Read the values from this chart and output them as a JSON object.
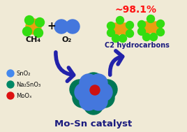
{
  "bg_color": "#f0ead6",
  "border_color": "#b8a878",
  "title_text": "Mo-Sn catalyst",
  "title_color": "#1a1a7e",
  "percent_text": "~98.1%",
  "percent_color": "#ff1111",
  "ch4_text": "CH₄",
  "o2_text": "O₂",
  "c2_text": "C2 hydrocarbons",
  "c2_color": "#1a1a7e",
  "plus_text": "+",
  "legend_items": [
    {
      "label": "SnO₂",
      "color": "#4488ee"
    },
    {
      "label": "Na₂SnO₃",
      "color": "#008866"
    },
    {
      "label": "MoOₓ",
      "color": "#dd1111"
    }
  ],
  "sno2_color": "#4477dd",
  "na2sno3_color": "#007755",
  "moo3_color": "#cc1111",
  "yellow_color": "#e8a010",
  "green_color": "#33dd11",
  "arrow_color": "#2222aa",
  "label_color": "#111111"
}
